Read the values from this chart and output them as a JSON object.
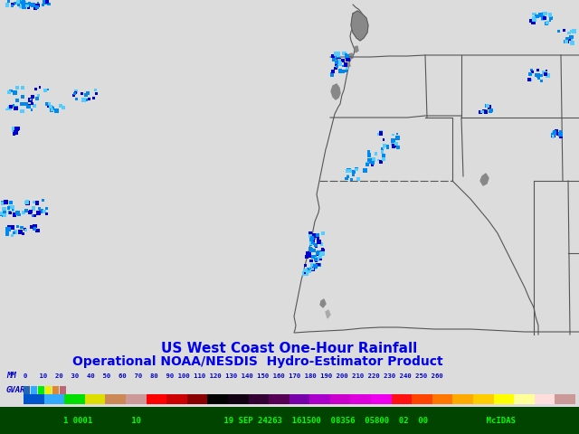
{
  "title1": "US West Coast One-Hour Rainfall",
  "title2": "Operational NOAA/NESDIS  Hydro-Estimator Product",
  "title_color": "#0000ee",
  "bg_color": "#dcdcdc",
  "border_color": "#555555",
  "rain_color_light": "#55ccff",
  "rain_color_mid": "#0088ee",
  "rain_color_dark": "#0000cc",
  "bottom_bar_color": "#005500",
  "bottom_text": "1 0001        10                 19 SEP 24263  161500  08356  05800  02  00            McIDAS",
  "bottom_text_color": "#00ff00",
  "mm_label": "MM",
  "mm_values": "0   10  20  30  40  50  60  70  80  90 100 110 120 130 140 150 160 170 180 190 200 210 220 230 240 250 260",
  "gvar_label": "GVAR",
  "colorbar_colors": [
    "#0055cc",
    "#33aaff",
    "#00dd00",
    "#dddd00",
    "#cc8855",
    "#cc9999",
    "#ff0000",
    "#cc0000",
    "#880000",
    "#000000",
    "#110011",
    "#330033",
    "#550055",
    "#7700aa",
    "#aa00cc",
    "#cc00cc",
    "#dd00dd",
    "#ee00ee",
    "#ff1111",
    "#ff4400",
    "#ff7700",
    "#ffaa00",
    "#ffcc00",
    "#ffff00",
    "#ffff99",
    "#ffdddd",
    "#cc9999"
  ],
  "gvar_colors": [
    "#2266bb",
    "#33aaff",
    "#00ee00",
    "#eeee00",
    "#dd8833",
    "#bb6677"
  ],
  "land_gray": "#888888",
  "land_light": "#aaaaaa"
}
